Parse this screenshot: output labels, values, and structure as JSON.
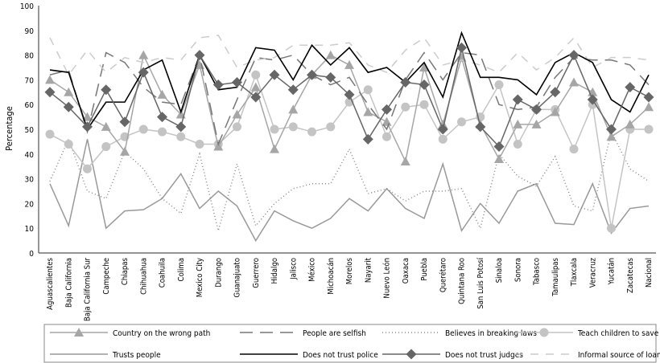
{
  "chart_data": {
    "type": "line",
    "title": "",
    "xlabel": "",
    "ylabel": "Percentage",
    "ylim": [
      0,
      100
    ],
    "yticks": [
      0,
      10,
      20,
      30,
      40,
      50,
      60,
      70,
      80,
      90,
      100
    ],
    "grid": false,
    "legend_position": "bottom",
    "categories": [
      "Aguascalientes",
      "Baja California",
      "Baja California Sur",
      "Campeche",
      "Chiapas",
      "Chihuahua",
      "Coahuila",
      "Colima",
      "Mexico City",
      "Durango",
      "Guanajuato",
      "Guerrero",
      "Hidalgo",
      "Jalisco",
      "México",
      "Michoacán",
      "Morelos",
      "Nayarit",
      "Nuevo León",
      "Oaxaca",
      "Puebla",
      "Querétaro",
      "Quintana Roo",
      "San Luis Potosí",
      "Sinaloa",
      "Sonora",
      "Tabasco",
      "Tamaulipas",
      "Tlaxcala",
      "Veracruz",
      "Yucatán",
      "Zacatecas",
      "Nacional"
    ],
    "series": [
      {
        "name": "Country on the wrong path",
        "color": "#a6a6a6",
        "style": "solid",
        "marker": "triangle",
        "values": [
          70,
          65,
          55,
          51,
          41,
          80,
          64,
          56,
          76,
          43,
          56,
          67,
          42,
          58,
          72,
          80,
          76,
          57,
          53,
          37,
          75,
          52,
          79,
          52,
          38,
          52,
          52,
          57,
          69,
          65,
          47,
          52,
          59
        ]
      },
      {
        "name": "People are selfish",
        "color": "#777777",
        "style": "long-dash",
        "marker": "none",
        "values": [
          72,
          74,
          49,
          81,
          77,
          67,
          61,
          60,
          80,
          44,
          62,
          79,
          78,
          80,
          72,
          68,
          71,
          60,
          50,
          70,
          81,
          70,
          81,
          80,
          60,
          58,
          59,
          71,
          79,
          78,
          78,
          76,
          68
        ]
      },
      {
        "name": "Believes in breaking laws",
        "color": "#888888",
        "style": "dotted",
        "marker": "none",
        "values": [
          29,
          46,
          25,
          22,
          41,
          34,
          22,
          16,
          40,
          9,
          36,
          11,
          20,
          26,
          28,
          28,
          42,
          24,
          26,
          21,
          25,
          25,
          26,
          10,
          40,
          31,
          27,
          39,
          19,
          17,
          49,
          34,
          29
        ]
      },
      {
        "name": "Teach children to save",
        "color": "#c4c4c4",
        "style": "solid",
        "marker": "circle",
        "values": [
          48,
          44,
          34,
          43,
          47,
          50,
          49,
          47,
          44,
          44,
          51,
          72,
          50,
          51,
          49,
          51,
          61,
          66,
          47,
          59,
          60,
          46,
          53,
          55,
          68,
          44,
          58,
          58,
          42,
          60,
          10,
          50,
          50
        ]
      },
      {
        "name": "Trusts people",
        "color": "#999999",
        "style": "solid",
        "marker": "none",
        "values": [
          28,
          11,
          46,
          10,
          17,
          17.5,
          22,
          32,
          18,
          25,
          19,
          5,
          17,
          13,
          10,
          14,
          22,
          17,
          26,
          18,
          14,
          36,
          9,
          20,
          12,
          25,
          28,
          12,
          11.5,
          28,
          8,
          18,
          19
        ]
      },
      {
        "name": "Does not trust police",
        "color": "#000000",
        "style": "solid",
        "marker": "none",
        "values": [
          74,
          73,
          50,
          61,
          61,
          74,
          78,
          57,
          80,
          66,
          67,
          83,
          82,
          70,
          84,
          76,
          83,
          73,
          75,
          69,
          77,
          63,
          89,
          71,
          71,
          70,
          64,
          77,
          81,
          77,
          62,
          57,
          72
        ]
      },
      {
        "name": "Does not trust judges",
        "color": "#666666",
        "style": "solid",
        "marker": "diamond",
        "values": [
          65,
          59,
          51,
          66,
          53,
          73,
          55,
          51,
          80,
          68,
          69,
          63,
          72,
          66,
          72,
          71,
          64,
          46,
          58,
          69,
          68,
          50,
          83,
          51,
          43,
          62,
          58,
          65,
          80,
          62,
          50,
          67,
          63
        ]
      },
      {
        "name": "Informal source of loans",
        "color": "#cccccc",
        "style": "dash",
        "marker": "none",
        "values": [
          87,
          72,
          82,
          73,
          79,
          77,
          79,
          78,
          87,
          88,
          75,
          78,
          79,
          84,
          84,
          84,
          85,
          76,
          73,
          82,
          87,
          76,
          78,
          76,
          73,
          81,
          74,
          79,
          87,
          75,
          79,
          79,
          78
        ]
      }
    ]
  }
}
